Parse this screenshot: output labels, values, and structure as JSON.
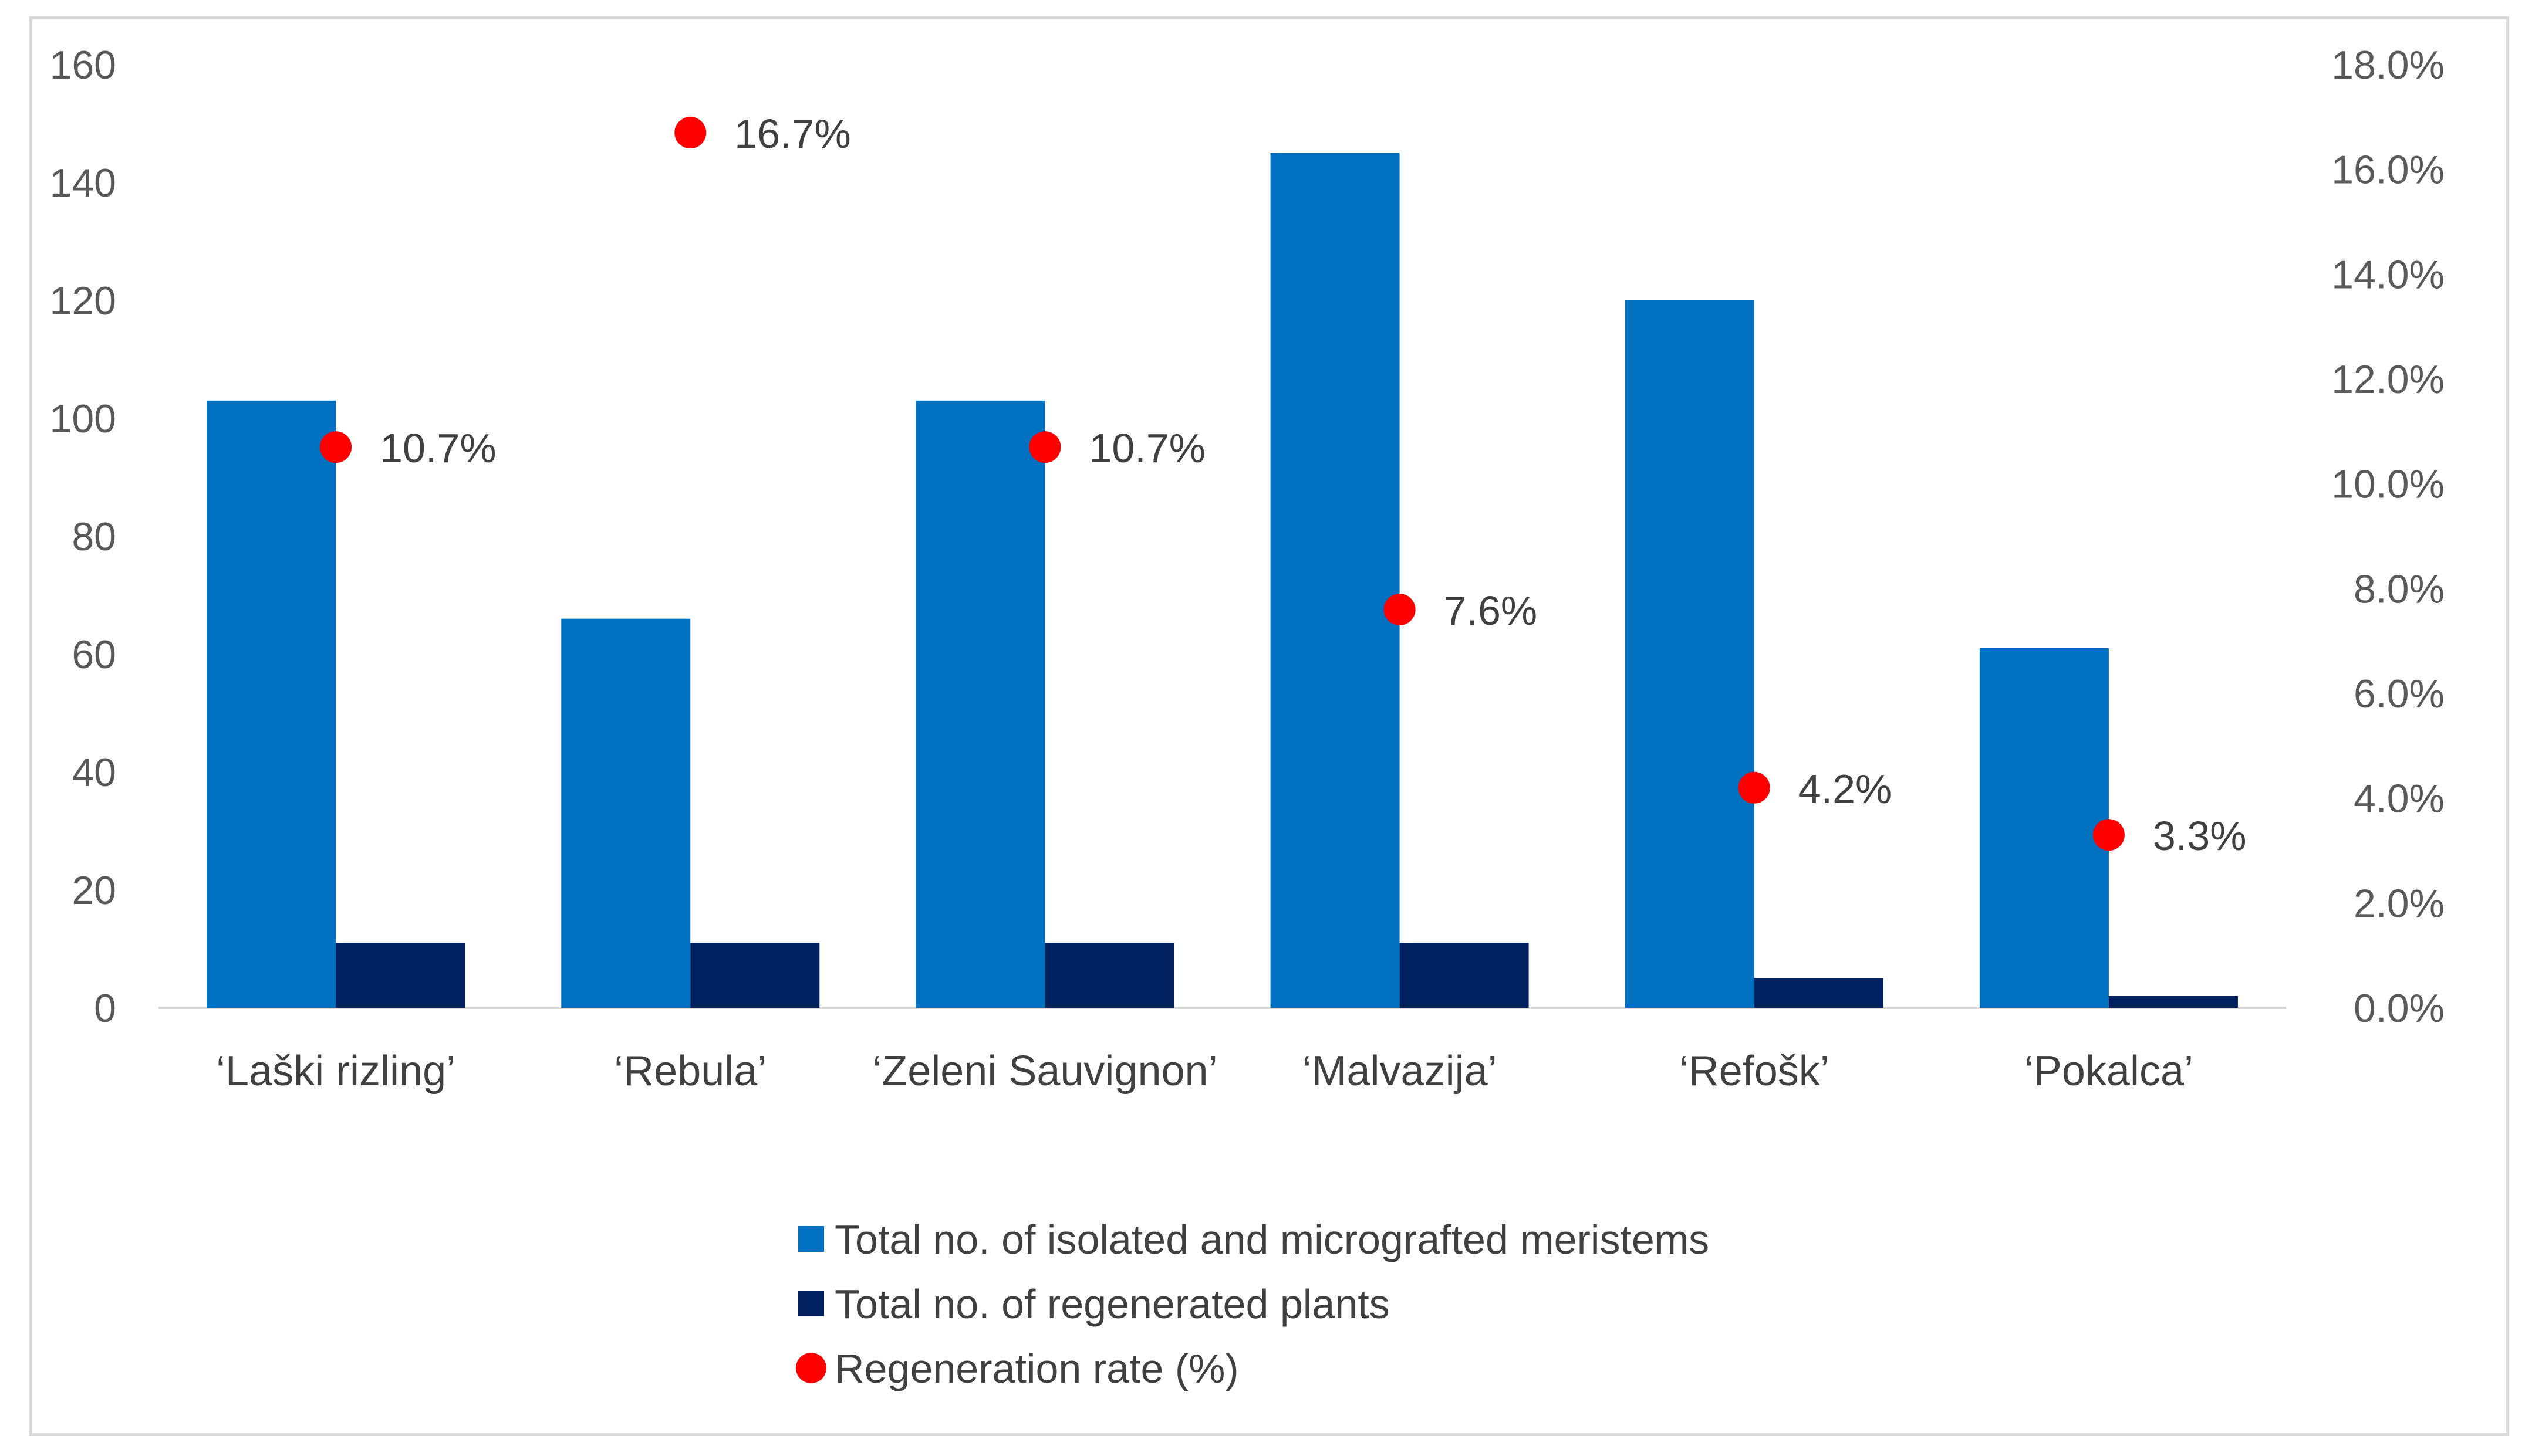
{
  "chart_data": {
    "type": "bar",
    "categories": [
      "‘Laški rizling’",
      "‘Rebula’",
      "‘Zeleni Sauvignon’",
      "‘Malvazija’",
      "‘Refošk’",
      "‘Pokalca’"
    ],
    "series": [
      {
        "name": "Total no. of isolated and micrografted meristems",
        "type": "bar",
        "axis": "left",
        "color": "#0070c0",
        "values": [
          103,
          66,
          103,
          145,
          120,
          61
        ]
      },
      {
        "name": "Total no. of regenerated plants",
        "type": "bar",
        "axis": "left",
        "color": "#002060",
        "values": [
          11,
          11,
          11,
          11,
          5,
          2
        ]
      },
      {
        "name": "Regeneration rate (%)",
        "type": "scatter",
        "axis": "right",
        "color": "#ff0000",
        "values": [
          10.7,
          16.7,
          10.7,
          7.6,
          4.2,
          3.3
        ],
        "labels": [
          "10.7%",
          "16.7%",
          "10.7%",
          "7.6%",
          "4.2%",
          "3.3%"
        ]
      }
    ],
    "y_left": {
      "min": 0,
      "max": 160,
      "ticks": [
        "0",
        "20",
        "40",
        "60",
        "80",
        "100",
        "120",
        "140",
        "160"
      ]
    },
    "y_right": {
      "min": 0,
      "max": 18,
      "ticks": [
        "0.0%",
        "2.0%",
        "4.0%",
        "6.0%",
        "8.0%",
        "10.0%",
        "12.0%",
        "14.0%",
        "16.0%",
        "18.0%"
      ]
    },
    "legend_position": "bottom",
    "grid": false
  }
}
